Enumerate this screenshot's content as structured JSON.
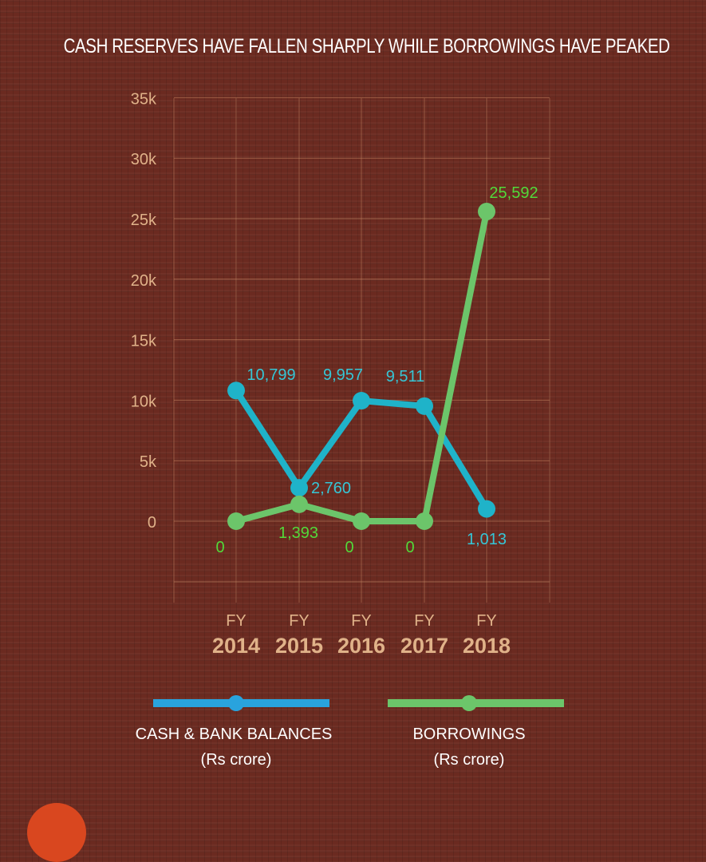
{
  "title": "CASH RESERVES HAVE FALLEN SHARPLY WHILE BORROWINGS HAVE PEAKED",
  "colors": {
    "background": "#6b2a20",
    "grid": "#c98a66",
    "axis_text": "#e0b289",
    "cash": "#1fb3c9",
    "cash_legend": "#29a3dd",
    "cash_label": "#35c6d6",
    "borrowings": "#6cc56a",
    "borrowings_label": "#52d93a",
    "legend_text": "#ffffff",
    "deco_circle": "#d9471f"
  },
  "y_axis": {
    "ticks": [
      "35k",
      "30k",
      "25k",
      "20k",
      "15k",
      "10k",
      "5k",
      "0"
    ]
  },
  "x_axis": {
    "categories": [
      {
        "prefix": "FY",
        "year": "2014"
      },
      {
        "prefix": "FY",
        "year": "2015"
      },
      {
        "prefix": "FY",
        "year": "2016"
      },
      {
        "prefix": "FY",
        "year": "2017"
      },
      {
        "prefix": "FY",
        "year": "2018"
      }
    ]
  },
  "series_labels": {
    "cash": [
      "10,799",
      "2,760",
      "9,957",
      "9,511",
      "1,013"
    ],
    "borrowings": [
      "0",
      "1,393",
      "0",
      "0",
      "25,592"
    ]
  },
  "legend": {
    "cash": {
      "line1": "CASH & BANK BALANCES",
      "line2": "(Rs crore)"
    },
    "borrowings": {
      "line1": "BORROWINGS",
      "line2": "(Rs crore)"
    }
  },
  "chart_data": {
    "type": "line",
    "title": "CASH RESERVES HAVE FALLEN SHARPLY WHILE BORROWINGS HAVE PEAKED",
    "categories": [
      "FY 2014",
      "FY 2015",
      "FY 2016",
      "FY 2017",
      "FY 2018"
    ],
    "series": [
      {
        "name": "CASH & BANK BALANCES (Rs crore)",
        "values": [
          10799,
          2760,
          9957,
          9511,
          1013
        ],
        "color": "#1fb3c9"
      },
      {
        "name": "BORROWINGS (Rs crore)",
        "values": [
          0,
          1393,
          0,
          0,
          25592
        ],
        "color": "#6cc56a"
      }
    ],
    "xlabel": "",
    "ylabel": "",
    "ylim": [
      0,
      35000
    ],
    "yticks": [
      0,
      5000,
      10000,
      15000,
      20000,
      25000,
      30000,
      35000
    ],
    "ytick_labels": [
      "0",
      "5k",
      "10k",
      "15k",
      "20k",
      "25k",
      "30k",
      "35k"
    ],
    "grid": true,
    "legend_position": "bottom"
  }
}
